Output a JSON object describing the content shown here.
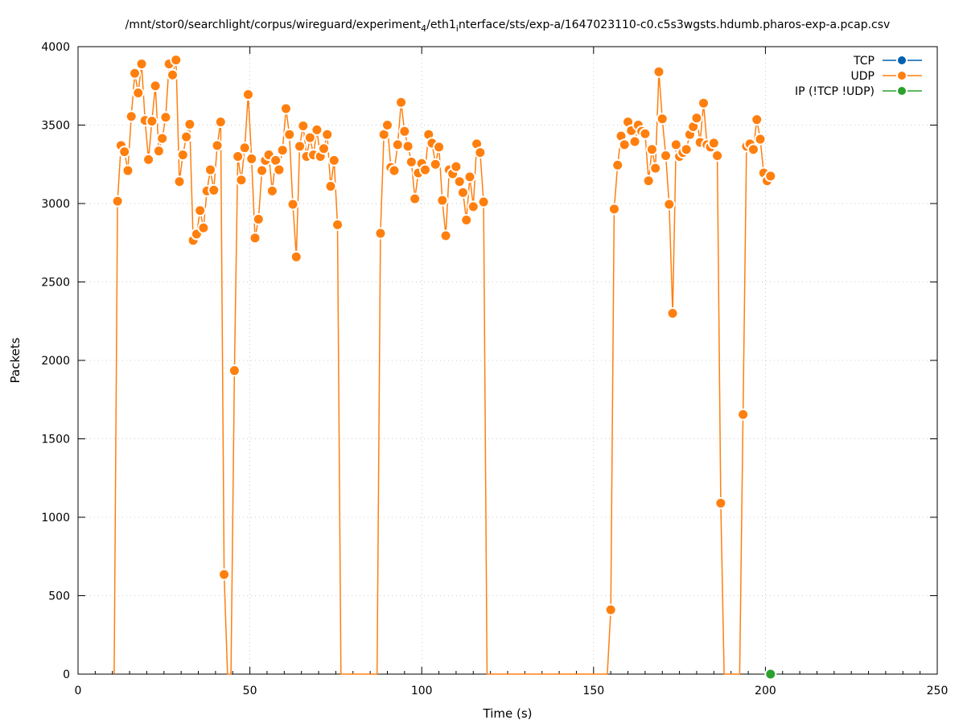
{
  "chart_data": {
    "type": "line",
    "title": "/mnt/stor0/searchlight/corpus/wireguard/experiment_4/eth1_interface/sts/exp-a/1647023110-c0.c5s3wgsts.hdumb.pharos-exp-a.pcap.csv",
    "title_parts": [
      {
        "text": "/mnt/stor0/searchlight/corpus/wireguard/experiment",
        "sub": false
      },
      {
        "text": "4",
        "sub": true
      },
      {
        "text": "/eth1",
        "sub": false
      },
      {
        "text": "i",
        "sub": true
      },
      {
        "text": "nterface/sts/exp-a/1647023110-c0.c5s3wgsts.hdumb.pharos-exp-a.pcap.csv",
        "sub": false
      }
    ],
    "xlabel": "Time (s)",
    "ylabel": "Packets",
    "xlim": [
      0,
      250
    ],
    "ylim": [
      0,
      4000
    ],
    "xticks": [
      0,
      50,
      100,
      150,
      200,
      250
    ],
    "yticks": [
      0,
      500,
      1000,
      1500,
      2000,
      2500,
      3000,
      3500,
      4000
    ],
    "grid": true,
    "legend_position": "top-right",
    "series": [
      {
        "name": "TCP",
        "color": "#0060ad",
        "points": []
      },
      {
        "name": "UDP",
        "color": "#ff7f0e",
        "points": [
          [
            10.5,
            0
          ],
          [
            11.5,
            3015
          ],
          [
            12.5,
            3370
          ],
          [
            13.5,
            3330
          ],
          [
            14.5,
            3210
          ],
          [
            15.5,
            3555
          ],
          [
            16.5,
            3830
          ],
          [
            17.5,
            3705
          ],
          [
            18.5,
            3890
          ],
          [
            19.5,
            3530
          ],
          [
            20.5,
            3280
          ],
          [
            21.5,
            3525
          ],
          [
            22.5,
            3750
          ],
          [
            23.5,
            3335
          ],
          [
            24.5,
            3415
          ],
          [
            25.5,
            3550
          ],
          [
            26.5,
            3890
          ],
          [
            27.5,
            3820
          ],
          [
            28.5,
            3915
          ],
          [
            29.5,
            3140
          ],
          [
            30.5,
            3310
          ],
          [
            31.5,
            3425
          ],
          [
            32.5,
            3505
          ],
          [
            33.5,
            2765
          ],
          [
            34.5,
            2805
          ],
          [
            35.5,
            2955
          ],
          [
            36.5,
            2845
          ],
          [
            37.5,
            3080
          ],
          [
            38.5,
            3215
          ],
          [
            39.5,
            3085
          ],
          [
            40.5,
            3370
          ],
          [
            41.5,
            3520
          ],
          [
            42.5,
            635
          ],
          [
            43.5,
            0
          ],
          [
            44.5,
            0
          ],
          [
            45.5,
            1935
          ],
          [
            46.5,
            3300
          ],
          [
            47.5,
            3150
          ],
          [
            48.5,
            3355
          ],
          [
            49.5,
            3695
          ],
          [
            50.5,
            3285
          ],
          [
            51.5,
            2780
          ],
          [
            52.5,
            2900
          ],
          [
            53.5,
            3210
          ],
          [
            54.5,
            3275
          ],
          [
            55.5,
            3310
          ],
          [
            56.5,
            3080
          ],
          [
            57.5,
            3275
          ],
          [
            58.5,
            3215
          ],
          [
            59.5,
            3340
          ],
          [
            60.5,
            3605
          ],
          [
            61.5,
            3440
          ],
          [
            62.5,
            2995
          ],
          [
            63.5,
            2660
          ],
          [
            64.5,
            3365
          ],
          [
            65.5,
            3495
          ],
          [
            66.5,
            3300
          ],
          [
            67.5,
            3420
          ],
          [
            68.5,
            3310
          ],
          [
            69.5,
            3470
          ],
          [
            70.5,
            3300
          ],
          [
            71.5,
            3350
          ],
          [
            72.5,
            3440
          ],
          [
            73.5,
            3110
          ],
          [
            74.5,
            3275
          ],
          [
            75.5,
            2865
          ],
          [
            76.5,
            0
          ],
          [
            87,
            0
          ],
          [
            88,
            2810
          ],
          [
            89,
            3440
          ],
          [
            90,
            3500
          ],
          [
            91,
            3230
          ],
          [
            92,
            3210
          ],
          [
            93,
            3375
          ],
          [
            94,
            3645
          ],
          [
            95,
            3460
          ],
          [
            96,
            3365
          ],
          [
            97,
            3265
          ],
          [
            98,
            3030
          ],
          [
            99,
            3195
          ],
          [
            100,
            3255
          ],
          [
            101,
            3215
          ],
          [
            102,
            3440
          ],
          [
            103,
            3385
          ],
          [
            104,
            3250
          ],
          [
            105,
            3360
          ],
          [
            106,
            3020
          ],
          [
            107,
            2795
          ],
          [
            108,
            3215
          ],
          [
            109,
            3190
          ],
          [
            110,
            3235
          ],
          [
            111,
            3140
          ],
          [
            112,
            3070
          ],
          [
            113,
            2895
          ],
          [
            114,
            3170
          ],
          [
            115,
            2980
          ],
          [
            116,
            3380
          ],
          [
            117,
            3325
          ],
          [
            118,
            3010
          ],
          [
            119,
            0
          ],
          [
            154,
            0
          ],
          [
            155,
            410
          ],
          [
            156,
            2965
          ],
          [
            157,
            3245
          ],
          [
            158,
            3430
          ],
          [
            159,
            3375
          ],
          [
            160,
            3520
          ],
          [
            161,
            3465
          ],
          [
            162,
            3395
          ],
          [
            163,
            3500
          ],
          [
            164,
            3460
          ],
          [
            165,
            3445
          ],
          [
            166,
            3145
          ],
          [
            167,
            3345
          ],
          [
            168,
            3225
          ],
          [
            169,
            3840
          ],
          [
            170,
            3540
          ],
          [
            171,
            3305
          ],
          [
            172,
            2995
          ],
          [
            173,
            2300
          ],
          [
            174,
            3375
          ],
          [
            175,
            3300
          ],
          [
            176,
            3325
          ],
          [
            177,
            3345
          ],
          [
            178,
            3440
          ],
          [
            179,
            3490
          ],
          [
            180,
            3545
          ],
          [
            181,
            3390
          ],
          [
            182,
            3640
          ],
          [
            183,
            3375
          ],
          [
            184,
            3360
          ],
          [
            185,
            3385
          ],
          [
            186,
            3305
          ],
          [
            187,
            1090
          ],
          [
            188,
            0
          ],
          [
            192.5,
            0
          ],
          [
            193.5,
            1655
          ],
          [
            194.5,
            3365
          ],
          [
            195.5,
            3380
          ],
          [
            196.5,
            3345
          ],
          [
            197.5,
            3535
          ],
          [
            198.5,
            3410
          ],
          [
            199.5,
            3195
          ],
          [
            200.5,
            3145
          ],
          [
            201.5,
            3175
          ]
        ]
      },
      {
        "name": "IP (!TCP  !UDP)",
        "color": "#2ca02c",
        "points": [
          [
            201.5,
            0
          ]
        ]
      }
    ]
  }
}
